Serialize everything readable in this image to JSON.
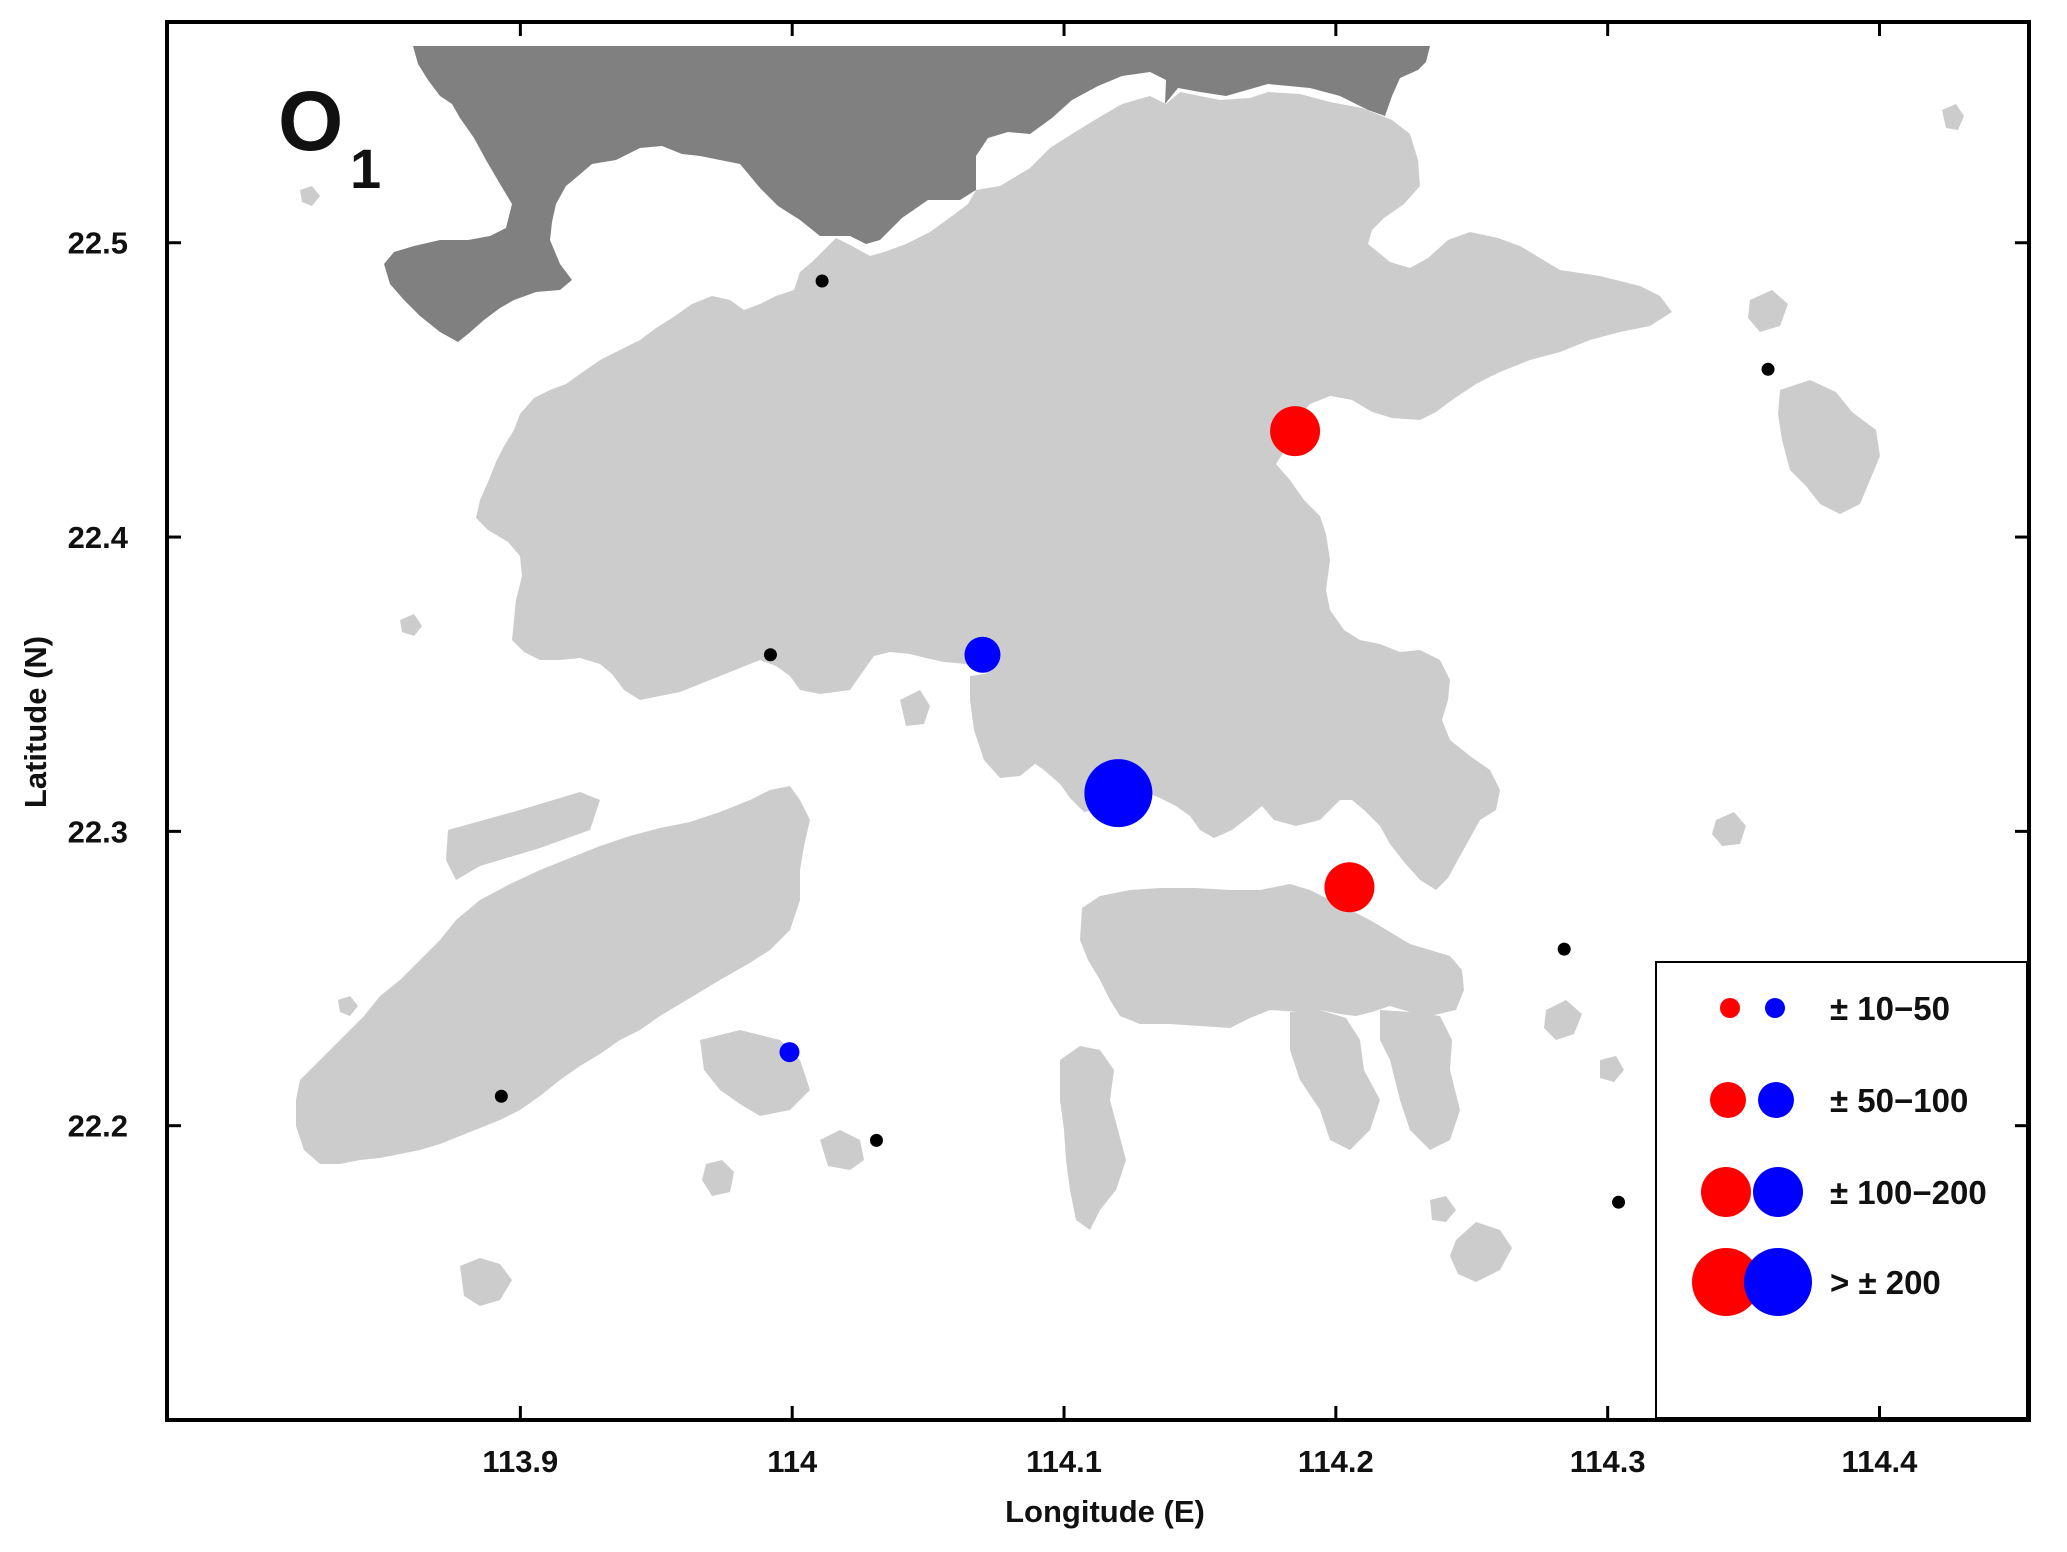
{
  "figure": {
    "panel_label": "O",
    "panel_subscript": "1",
    "xlabel": "Longitude (E)",
    "ylabel": "Latitude (N)"
  },
  "axes": {
    "xlim": [
      113.77,
      114.455
    ],
    "ylim": [
      22.1,
      22.575
    ],
    "x_ticks": [
      {
        "value": 113.9,
        "label": "113.9"
      },
      {
        "value": 114.0,
        "label": "114"
      },
      {
        "value": 114.1,
        "label": "114.1"
      },
      {
        "value": 114.2,
        "label": "114.2"
      },
      {
        "value": 114.3,
        "label": "114.3"
      },
      {
        "value": 114.4,
        "label": "114.4"
      }
    ],
    "y_ticks": [
      {
        "value": 22.2,
        "label": "22.2"
      },
      {
        "value": 22.3,
        "label": "22.3"
      },
      {
        "value": 22.4,
        "label": "22.4"
      },
      {
        "value": 22.5,
        "label": "22.5"
      }
    ]
  },
  "colors": {
    "positive": "#ff0000",
    "negative": "#0000ff",
    "station": "#000000",
    "land": "#cccccc",
    "mainland": "#808080",
    "water": "#ffffff"
  },
  "legend": {
    "placement": "bottom-right",
    "entries": [
      {
        "label": "± 10−50",
        "size_class": 1
      },
      {
        "label": "± 50−100",
        "size_class": 2
      },
      {
        "label": "± 100−200",
        "size_class": 3
      },
      {
        "label": "> ± 200",
        "size_class": 4
      }
    ]
  },
  "chart_data": {
    "type": "scatter",
    "xlabel": "Longitude (E)",
    "ylabel": "Latitude (N)",
    "xlim": [
      113.77,
      114.455
    ],
    "ylim": [
      22.1,
      22.575
    ],
    "grid": false,
    "series": [
      {
        "name": "+",
        "points": [
          {
            "lon": 114.185,
            "lat": 22.436,
            "size_class": 3
          },
          {
            "lon": 114.205,
            "lat": 22.281,
            "size_class": 3
          }
        ]
      },
      {
        "name": "−",
        "points": [
          {
            "lon": 114.07,
            "lat": 22.36,
            "size_class": 2
          },
          {
            "lon": 114.12,
            "lat": 22.313,
            "size_class": 4
          },
          {
            "lon": 113.999,
            "lat": 22.225,
            "size_class": 1
          }
        ]
      },
      {
        "name": "stations",
        "points": [
          {
            "lon": 114.011,
            "lat": 22.487
          },
          {
            "lon": 114.359,
            "lat": 22.457
          },
          {
            "lon": 113.992,
            "lat": 22.36
          },
          {
            "lon": 114.284,
            "lat": 22.26
          },
          {
            "lon": 113.893,
            "lat": 22.21
          },
          {
            "lon": 114.031,
            "lat": 22.195
          },
          {
            "lon": 114.304,
            "lat": 22.174
          }
        ]
      }
    ]
  }
}
